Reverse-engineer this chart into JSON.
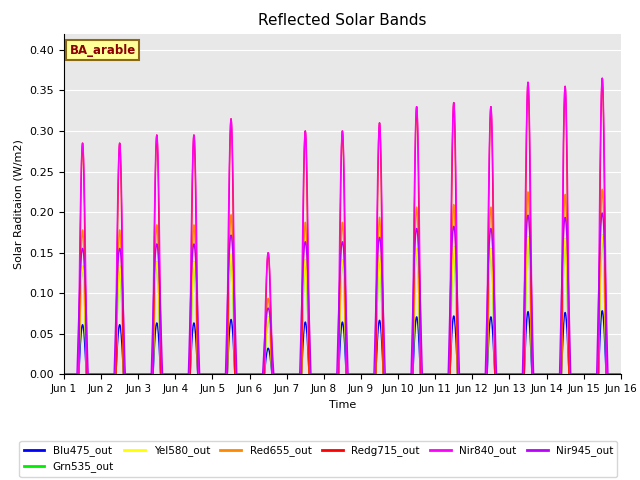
{
  "title": "Reflected Solar Bands",
  "xlabel": "Time",
  "ylabel": "Solar Raditaion (W/m2)",
  "annotation_text": "BA_arable",
  "annotation_bg": "#FFFF99",
  "annotation_border": "#8B6914",
  "ylim": [
    0.0,
    0.42
  ],
  "yticks": [
    0.0,
    0.05,
    0.1,
    0.15,
    0.2,
    0.25,
    0.3,
    0.35,
    0.4
  ],
  "ndays": 15,
  "points_per_day": 500,
  "background_color": "#E8E8E8",
  "grid_color": "#FFFFFF",
  "fig_bg": "#FFFFFF",
  "nir840_peaks": [
    0.285,
    0.285,
    0.295,
    0.295,
    0.315,
    0.15,
    0.3,
    0.3,
    0.31,
    0.33,
    0.335,
    0.33,
    0.36,
    0.355,
    0.365
  ],
  "redg715_peaks": [
    0.285,
    0.285,
    0.295,
    0.295,
    0.315,
    0.15,
    0.3,
    0.3,
    0.31,
    0.33,
    0.335,
    0.33,
    0.36,
    0.355,
    0.365
  ],
  "series_configs": [
    {
      "name": "Blu475_out",
      "color": "#0000FF",
      "rel_scale": 0.215,
      "lw": 1.0,
      "day_start": 0.4,
      "day_end": 0.6,
      "ref": "nir840"
    },
    {
      "name": "Grn535_out",
      "color": "#00EE00",
      "rel_scale": 0.47,
      "lw": 1.0,
      "day_start": 0.4,
      "day_end": 0.6,
      "ref": "nir840"
    },
    {
      "name": "Yel580_out",
      "color": "#FFFF00",
      "rel_scale": 0.47,
      "lw": 1.0,
      "day_start": 0.4,
      "day_end": 0.6,
      "ref": "nir840"
    },
    {
      "name": "Red655_out",
      "color": "#FF8800",
      "rel_scale": 0.625,
      "lw": 1.0,
      "day_start": 0.4,
      "day_end": 0.6,
      "ref": "nir840"
    },
    {
      "name": "Redg715_out",
      "color": "#FF0000",
      "rel_scale": 1.0,
      "lw": 1.0,
      "day_start": 0.4,
      "day_end": 0.6,
      "ref": "redg715"
    },
    {
      "name": "Nir840_out",
      "color": "#FF00FF",
      "rel_scale": 1.0,
      "lw": 1.0,
      "day_start": 0.38,
      "day_end": 0.62,
      "ref": "nir840"
    },
    {
      "name": "Nir945_out",
      "color": "#BB00FF",
      "rel_scale": 0.545,
      "lw": 1.0,
      "day_start": 0.35,
      "day_end": 0.65,
      "ref": "nir840"
    }
  ],
  "legend_items": [
    {
      "label": "Blu475_out",
      "color": "#0000FF"
    },
    {
      "label": "Grn535_out",
      "color": "#00EE00"
    },
    {
      "label": "Yel580_out",
      "color": "#FFFF00"
    },
    {
      "label": "Red655_out",
      "color": "#FF8800"
    },
    {
      "label": "Redg715_out",
      "color": "#FF0000"
    },
    {
      "label": "Nir840_out",
      "color": "#FF00FF"
    },
    {
      "label": "Nir945_out",
      "color": "#BB00FF"
    }
  ]
}
